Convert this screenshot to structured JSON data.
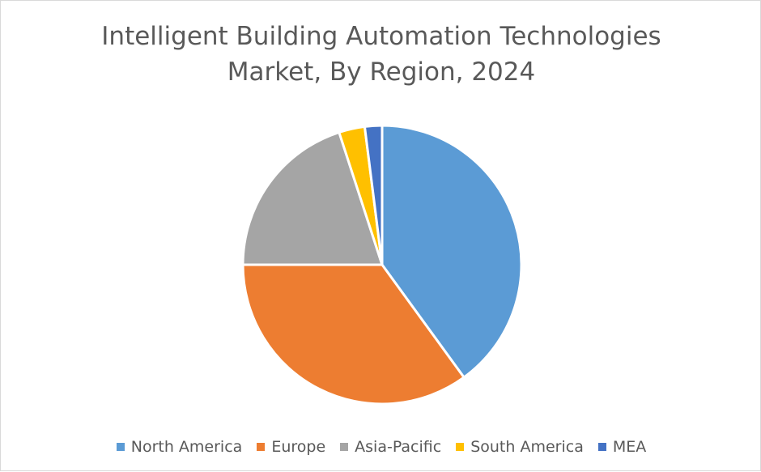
{
  "chart_data": {
    "type": "pie",
    "title_lines": [
      "Intelligent Building Automation Technologies",
      "Market, By Region, 2024"
    ],
    "categories": [
      "North America",
      "Europe",
      "Asia-Pacific",
      "South America",
      "MEA"
    ],
    "values": [
      40,
      35,
      20,
      3,
      2
    ],
    "colors": [
      "#5b9bd5",
      "#ed7d31",
      "#a5a5a5",
      "#ffc000",
      "#4472c4"
    ],
    "legend_position": "bottom"
  }
}
